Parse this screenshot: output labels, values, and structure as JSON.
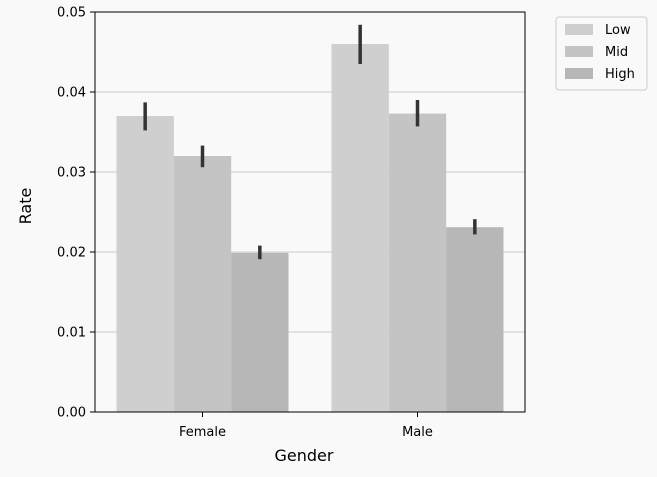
{
  "chart_data": {
    "type": "bar",
    "title": "",
    "xlabel": "Gender",
    "ylabel": "Rate",
    "categories": [
      "Female",
      "Male"
    ],
    "ylim": [
      0,
      0.05
    ],
    "yticks": [
      "0.00",
      "0.01",
      "0.02",
      "0.03",
      "0.04",
      "0.05"
    ],
    "ytick_values": [
      0,
      0.01,
      0.02,
      0.03,
      0.04,
      0.05
    ],
    "grid": "horizontal",
    "legend_position": "outside-top-right",
    "series": [
      {
        "name": "Low",
        "color": "#cfcfcf",
        "values": [
          0.037,
          0.046
        ],
        "err_low": [
          0.0352,
          0.0435
        ],
        "err_high": [
          0.0387,
          0.0484
        ]
      },
      {
        "name": "Mid",
        "color": "#c4c4c4",
        "values": [
          0.032,
          0.0373
        ],
        "err_low": [
          0.0306,
          0.0357
        ],
        "err_high": [
          0.0333,
          0.039
        ]
      },
      {
        "name": "High",
        "color": "#b7b7b7",
        "values": [
          0.0199,
          0.0231
        ],
        "err_low": [
          0.0191,
          0.0222
        ],
        "err_high": [
          0.0208,
          0.0241
        ]
      }
    ]
  }
}
